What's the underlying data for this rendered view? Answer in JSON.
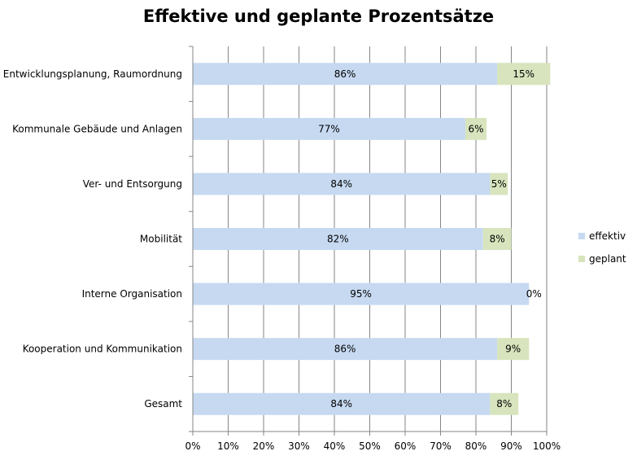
{
  "chart_data": {
    "type": "bar",
    "orientation": "horizontal",
    "stacked": true,
    "title": "Effektive und geplante Prozentsätze",
    "categories": [
      "Entwicklungsplanung, Raumordnung",
      "Kommunale Gebäude und Anlagen",
      "Ver- und Entsorgung",
      "Mobilität",
      "Interne Organisation",
      "Kooperation und Kommunikation",
      "Gesamt"
    ],
    "series": [
      {
        "name": "effektiv",
        "color": "#c6d9f1",
        "values": [
          86,
          77,
          84,
          82,
          95,
          86,
          84
        ],
        "labels": [
          "86%",
          "77%",
          "84%",
          "82%",
          "95%",
          "86%",
          "84%"
        ]
      },
      {
        "name": "geplant",
        "color": "#d7e4bd",
        "values": [
          15,
          6,
          5,
          8,
          0,
          9,
          8
        ],
        "labels": [
          "15%",
          "6%",
          "5%",
          "8%",
          "0%",
          "9%",
          "8%"
        ]
      }
    ],
    "xlim": [
      0,
      100
    ],
    "x_ticks": [
      "0%",
      "10%",
      "20%",
      "30%",
      "40%",
      "50%",
      "60%",
      "70%",
      "80%",
      "90%",
      "100%"
    ],
    "grid": true,
    "legend": "right"
  }
}
